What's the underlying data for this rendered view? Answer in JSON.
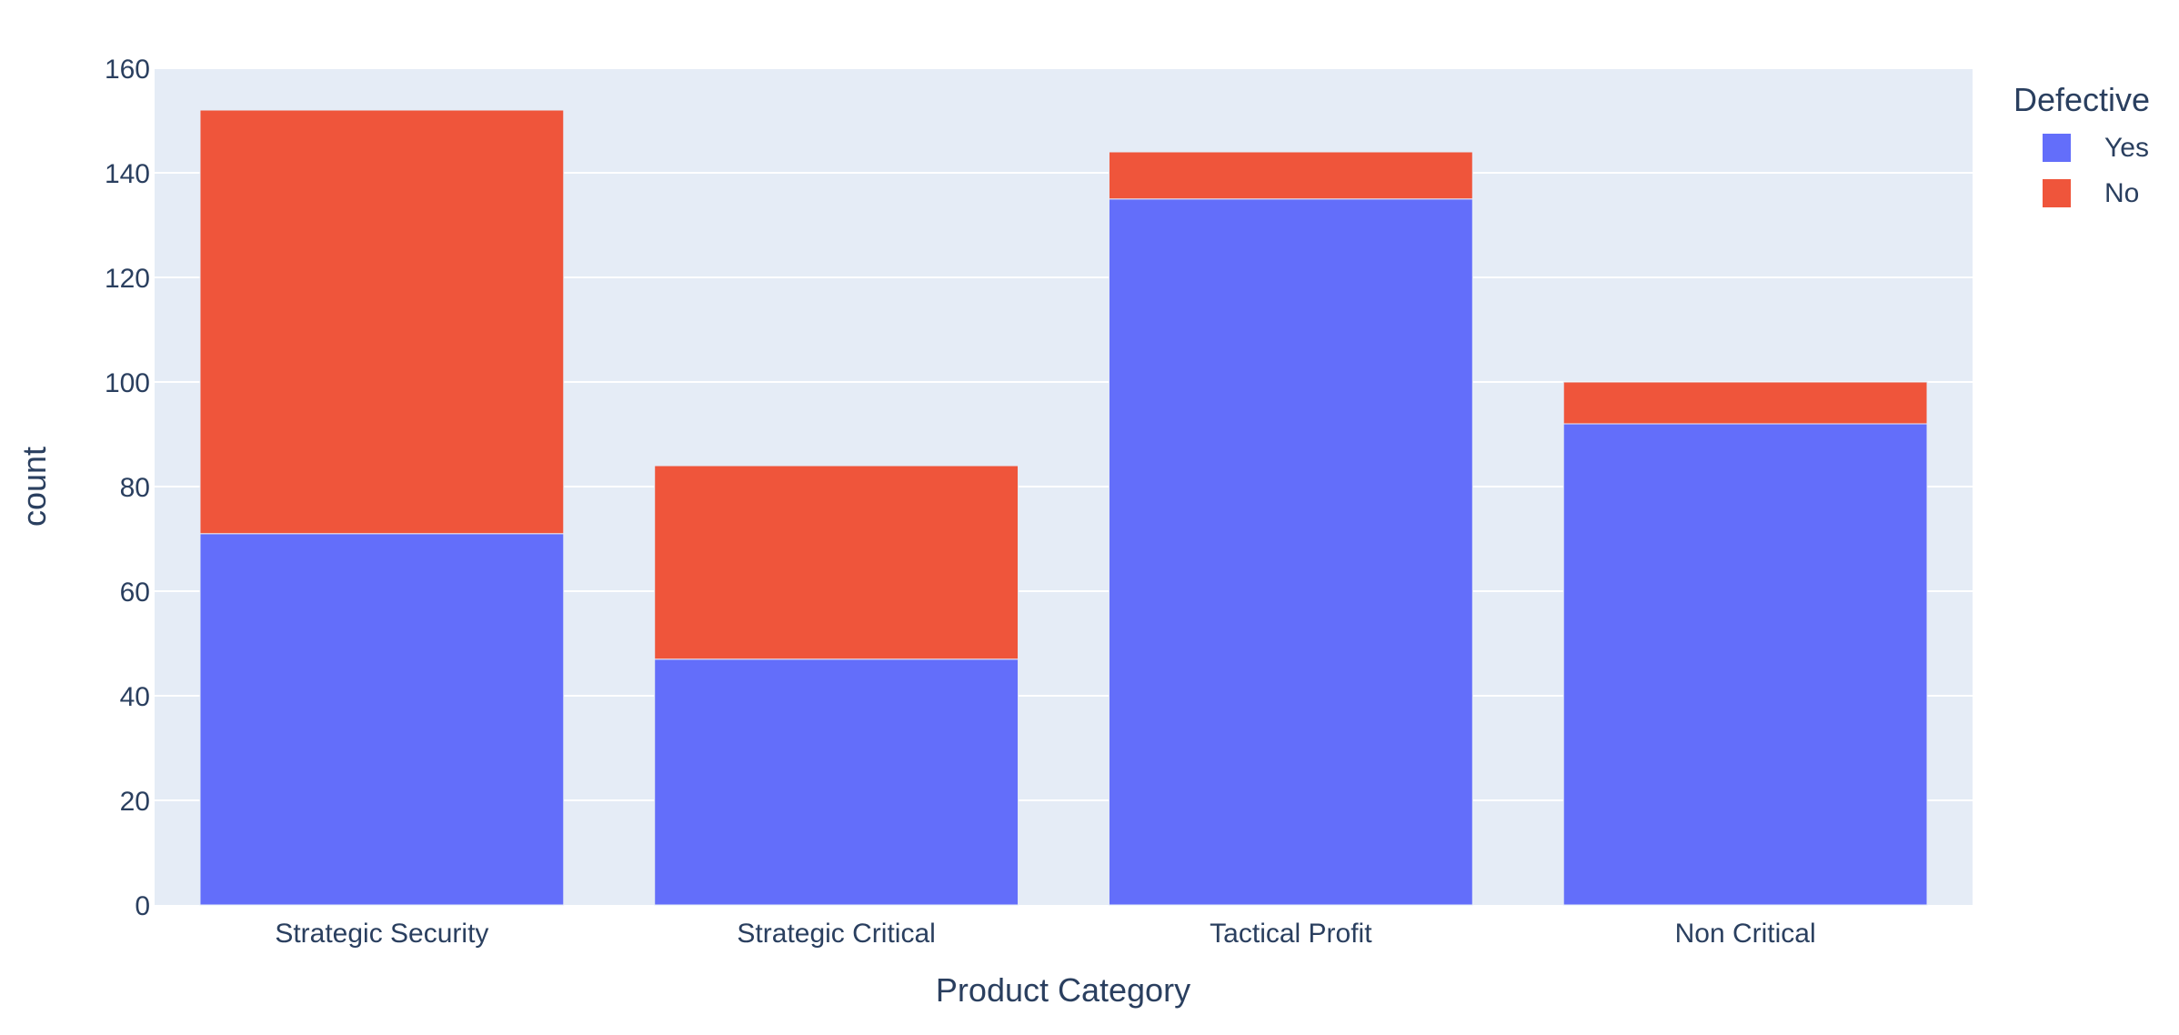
{
  "chart_data": {
    "type": "bar",
    "barmode": "stack",
    "title": "",
    "xlabel": "Product Category",
    "ylabel": "count",
    "categories": [
      "Strategic Security",
      "Strategic Critical",
      "Tactical Profit",
      "Non Critical"
    ],
    "series": [
      {
        "name": "Yes",
        "color": "#636efa",
        "values": [
          71,
          47,
          135,
          92
        ]
      },
      {
        "name": "No",
        "color": "#ef553b",
        "values": [
          81,
          37,
          9,
          8
        ]
      }
    ],
    "ylim": [
      0,
      160
    ],
    "yticks": [
      0,
      20,
      40,
      60,
      80,
      100,
      120,
      140,
      160
    ],
    "grid": true,
    "legend": {
      "title": "Defective",
      "position": "top-right"
    },
    "colors": {
      "plot_background": "#e5ecf6",
      "grid": "#ffffff",
      "text": "#2a3f5f"
    }
  }
}
